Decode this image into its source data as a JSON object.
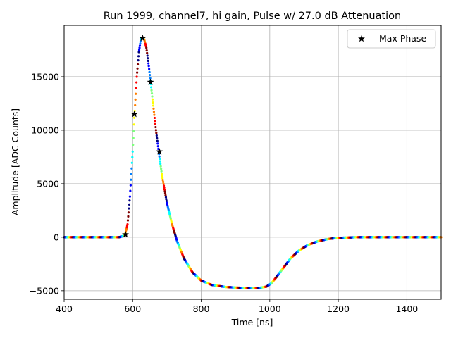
{
  "chart_data": {
    "type": "scatter",
    "title": "Run 1999, channel7, hi gain, Pulse w/ 27.0 dB Attenuation",
    "xlabel": "Time [ns]",
    "ylabel": "Amplitude [ADC Counts]",
    "xlim": [
      400,
      1500
    ],
    "ylim": [
      -5800,
      19800
    ],
    "xticks": [
      400,
      600,
      800,
      1000,
      1200,
      1400
    ],
    "yticks": [
      -5000,
      0,
      5000,
      10000,
      15000
    ],
    "xtick_labels": [
      "400",
      "600",
      "800",
      "1000",
      "1200",
      "1400"
    ],
    "ytick_labels": [
      "−5000",
      "0",
      "5000",
      "10000",
      "15000"
    ],
    "grid": true,
    "legend": {
      "position": "top-right",
      "entries": [
        "Max Phase"
      ]
    },
    "colormap": [
      "#00007f",
      "#0000ff",
      "#007fff",
      "#00ffff",
      "#7fff7f",
      "#ffff00",
      "#ff7f00",
      "#ff0000",
      "#7f0000"
    ],
    "waveform_points": [
      [
        400,
        0
      ],
      [
        560,
        0
      ],
      [
        570,
        80
      ],
      [
        578,
        250
      ],
      [
        585,
        1200
      ],
      [
        592,
        3800
      ],
      [
        600,
        8000
      ],
      [
        606,
        11800
      ],
      [
        612,
        15000
      ],
      [
        618,
        17300
      ],
      [
        624,
        18500
      ],
      [
        629,
        18650
      ],
      [
        634,
        18450
      ],
      [
        640,
        17700
      ],
      [
        647,
        16000
      ],
      [
        653,
        14300
      ],
      [
        660,
        12300
      ],
      [
        668,
        10000
      ],
      [
        676,
        8000
      ],
      [
        686,
        5700
      ],
      [
        700,
        3200
      ],
      [
        715,
        1200
      ],
      [
        730,
        -400
      ],
      [
        750,
        -2000
      ],
      [
        775,
        -3300
      ],
      [
        800,
        -4050
      ],
      [
        830,
        -4450
      ],
      [
        870,
        -4650
      ],
      [
        920,
        -4730
      ],
      [
        970,
        -4730
      ],
      [
        990,
        -4620
      ],
      [
        1005,
        -4300
      ],
      [
        1020,
        -3700
      ],
      [
        1040,
        -2850
      ],
      [
        1060,
        -2000
      ],
      [
        1085,
        -1250
      ],
      [
        1110,
        -750
      ],
      [
        1140,
        -380
      ],
      [
        1170,
        -170
      ],
      [
        1200,
        -60
      ],
      [
        1250,
        0
      ],
      [
        1300,
        0
      ],
      [
        1400,
        0
      ],
      [
        1500,
        0
      ]
    ],
    "series": [
      {
        "name": "Max Phase",
        "marker": "star",
        "color": "#000000",
        "x": [
          579,
          605,
          629,
          652,
          678
        ],
        "y": [
          250,
          11500,
          18600,
          14500,
          8000
        ]
      }
    ]
  }
}
